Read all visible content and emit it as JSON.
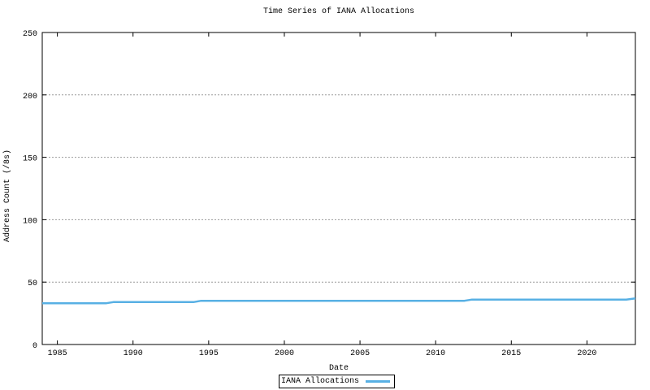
{
  "chart_data": {
    "type": "line",
    "title": "Time Series of IANA Allocations",
    "xlabel": "Date",
    "ylabel": "Address Count (/8s)",
    "xlim": [
      1984,
      2023.2
    ],
    "ylim": [
      0,
      250
    ],
    "x_ticks": [
      1985,
      1990,
      1995,
      2000,
      2005,
      2010,
      2015,
      2020
    ],
    "y_ticks": [
      0,
      50,
      100,
      150,
      200,
      250
    ],
    "grid": "horizontal dotted gridlines at major y ticks",
    "legend_position": "centered below x-axis label, boxed",
    "colors": {
      "line": "#58B0E4",
      "grid": "#9A9A9A",
      "frame": "#000000",
      "text": "#000000",
      "background": "#FFFFFF"
    },
    "series": [
      {
        "name": "IANA Allocations",
        "color": "#58B0E4",
        "points": [
          [
            1984.0,
            33
          ],
          [
            1988.2,
            33
          ],
          [
            1988.7,
            34
          ],
          [
            1994.0,
            34
          ],
          [
            1994.5,
            35
          ],
          [
            2011.9,
            35
          ],
          [
            2012.4,
            36
          ],
          [
            2022.6,
            36
          ],
          [
            2023.2,
            37
          ]
        ]
      }
    ]
  }
}
